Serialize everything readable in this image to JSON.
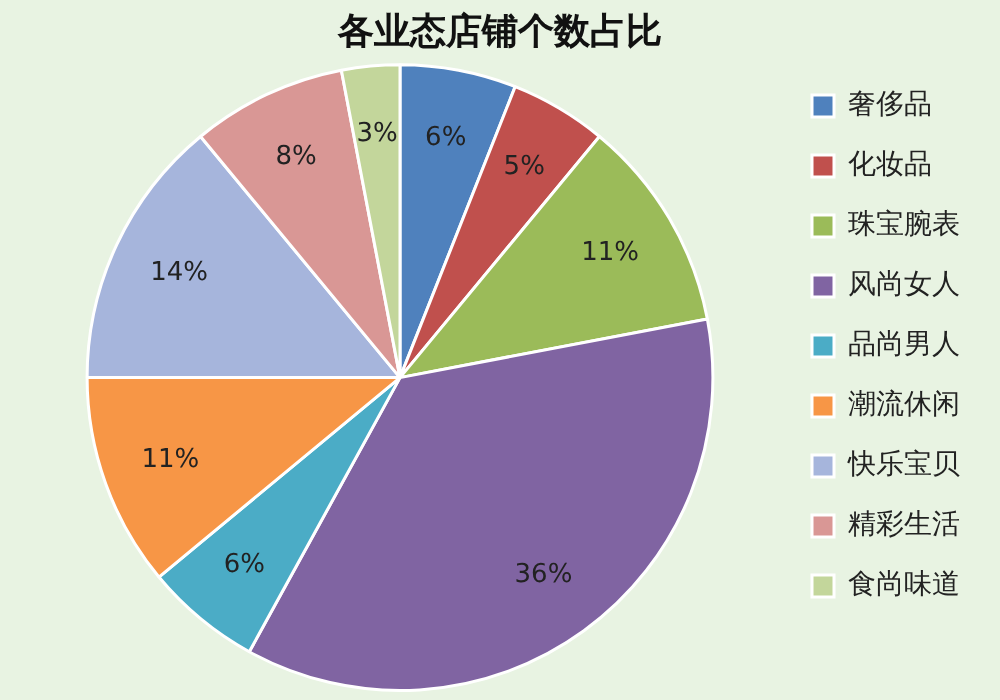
{
  "chart_data": {
    "type": "pie",
    "title": "各业态店铺个数占比",
    "categories": [
      "奢侈品",
      "化妆品",
      "珠宝腕表",
      "风尚女人",
      "品尚男人",
      "潮流休闲",
      "快乐宝贝",
      "精彩生活",
      "食尚味道"
    ],
    "values": [
      6,
      5,
      11,
      36,
      6,
      11,
      14,
      8,
      3
    ],
    "colors": [
      "#4f81bd",
      "#c0504d",
      "#9bbb59",
      "#8064a2",
      "#4bacc6",
      "#f79646",
      "#a6b5dc",
      "#d99795",
      "#c3d69b"
    ],
    "value_labels": [
      "6%",
      "5%",
      "11%",
      "36%",
      "6%",
      "11%",
      "14%",
      "8%",
      "3%"
    ],
    "legend": "right"
  }
}
